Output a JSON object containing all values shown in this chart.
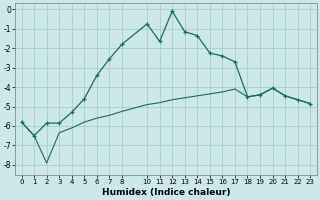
{
  "xlabel": "Humidex (Indice chaleur)",
  "bg_color": "#cce8e8",
  "grid_color": "#aacccc",
  "line_color": "#1a6b5a",
  "xlim": [
    -0.5,
    23.5
  ],
  "ylim": [
    -8.5,
    0.3
  ],
  "yticks": [
    0,
    -1,
    -2,
    -3,
    -4,
    -5,
    -6,
    -7,
    -8
  ],
  "xticks": [
    0,
    1,
    2,
    3,
    4,
    5,
    6,
    7,
    8,
    10,
    11,
    12,
    13,
    14,
    15,
    16,
    17,
    18,
    19,
    20,
    21,
    22,
    23
  ],
  "line1_x": [
    0,
    1,
    2,
    3,
    4,
    5,
    6,
    7,
    8,
    10,
    11,
    12,
    13,
    14,
    15,
    16,
    17,
    18,
    19,
    20,
    21,
    22,
    23
  ],
  "line1_y": [
    -5.8,
    -6.5,
    -5.85,
    -5.85,
    -5.3,
    -4.6,
    -3.4,
    -2.55,
    -1.8,
    -0.75,
    -1.65,
    -0.1,
    -1.15,
    -1.35,
    -2.25,
    -2.4,
    -2.7,
    -4.5,
    -4.4,
    -4.05,
    -4.45,
    -4.65,
    -4.85
  ],
  "line2_x": [
    0,
    1,
    2,
    3,
    4,
    5,
    6,
    7,
    8,
    10,
    11,
    12,
    13,
    14,
    15,
    16,
    17,
    18,
    19,
    20,
    21,
    22,
    23
  ],
  "line2_y": [
    -5.8,
    -6.5,
    -7.9,
    -6.35,
    -6.1,
    -5.8,
    -5.6,
    -5.45,
    -5.25,
    -4.9,
    -4.8,
    -4.65,
    -4.55,
    -4.45,
    -4.35,
    -4.25,
    -4.1,
    -4.5,
    -4.4,
    -4.05,
    -4.45,
    -4.65,
    -4.85
  ]
}
